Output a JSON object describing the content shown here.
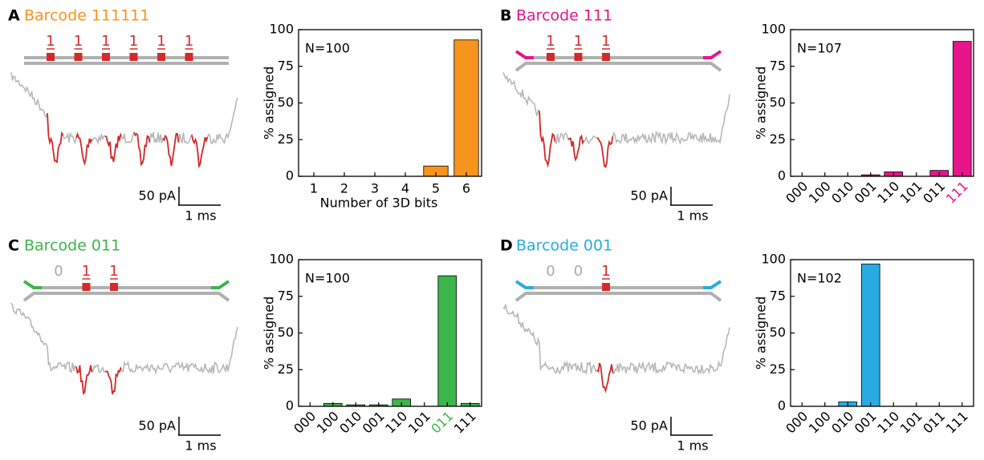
{
  "chart_data": [
    {
      "type": "bar",
      "panel_label": "A",
      "title": "Barcode 111111",
      "color": "#f7941d",
      "bits": [
        {
          "label": "1",
          "color": "#d42a2a"
        },
        {
          "label": "1",
          "color": "#d42a2a"
        },
        {
          "label": "1",
          "color": "#d42a2a"
        },
        {
          "label": "1",
          "color": "#d42a2a"
        },
        {
          "label": "1",
          "color": "#d42a2a"
        },
        {
          "label": "1",
          "color": "#d42a2a"
        }
      ],
      "bit_mark_color": "#d42a2a",
      "scale_labels": [
        "50 pA",
        "1 ms"
      ],
      "annotation": "N=100",
      "y_label": "% assigned",
      "x_label": "Number of 3D bits",
      "categories": [
        "1",
        "2",
        "3",
        "4",
        "5",
        "6"
      ],
      "values": [
        0,
        0,
        0,
        0,
        7,
        93
      ],
      "ylim": [
        0,
        100
      ],
      "yticks": [
        0,
        25,
        50,
        75,
        100
      ]
    },
    {
      "type": "bar",
      "panel_label": "B",
      "title": "Barcode 111",
      "color": "#e6168a",
      "bits": [
        {
          "label": "1",
          "color": "#d42a2a"
        },
        {
          "label": "1",
          "color": "#d42a2a"
        },
        {
          "label": "1",
          "color": "#d42a2a"
        }
      ],
      "bit_mark_color": "#d42a2a",
      "scale_labels": [
        "50 pA",
        "1 ms"
      ],
      "annotation": "N=107",
      "y_label": "% assigned",
      "categories": [
        "000",
        "100",
        "010",
        "001",
        "110",
        "101",
        "011",
        "111"
      ],
      "values": [
        0,
        0,
        0,
        1,
        3,
        0,
        4,
        92
      ],
      "category_label_colors": [
        "#000000",
        "#000000",
        "#000000",
        "#000000",
        "#000000",
        "#000000",
        "#000000",
        "#e6168a"
      ],
      "xtick_rotation": 45,
      "ylim": [
        0,
        100
      ],
      "yticks": [
        0,
        25,
        50,
        75,
        100
      ]
    },
    {
      "type": "bar",
      "panel_label": "C",
      "title": "Barcode 011",
      "color": "#3cb54a",
      "bits": [
        {
          "label": "0",
          "color": "#aaaaaa"
        },
        {
          "label": "1",
          "color": "#d42a2a"
        },
        {
          "label": "1",
          "color": "#d42a2a"
        }
      ],
      "bit_mark_color": "#d42a2a",
      "scale_labels": [
        "50 pA",
        "1 ms"
      ],
      "annotation": "N=100",
      "y_label": "% assigned",
      "categories": [
        "000",
        "100",
        "010",
        "001",
        "110",
        "101",
        "011",
        "111"
      ],
      "values": [
        0,
        2,
        1,
        1,
        5,
        0,
        89,
        2
      ],
      "category_label_colors": [
        "#000000",
        "#000000",
        "#000000",
        "#000000",
        "#000000",
        "#000000",
        "#3cb54a",
        "#000000"
      ],
      "xtick_rotation": 45,
      "ylim": [
        0,
        100
      ],
      "yticks": [
        0,
        25,
        50,
        75,
        100
      ]
    },
    {
      "type": "bar",
      "panel_label": "D",
      "title": "Barcode 001",
      "color": "#29abe2",
      "bits": [
        {
          "label": "0",
          "color": "#aaaaaa"
        },
        {
          "label": "0",
          "color": "#aaaaaa"
        },
        {
          "label": "1",
          "color": "#d42a2a"
        }
      ],
      "bit_mark_color": "#d42a2a",
      "scale_labels": [
        "50 pA",
        "1 ms"
      ],
      "annotation": "N=102",
      "y_label": "% assigned",
      "categories": [
        "000",
        "100",
        "010",
        "001",
        "110",
        "101",
        "011",
        "111"
      ],
      "values": [
        0,
        0,
        3,
        97,
        0,
        0,
        0,
        0
      ],
      "category_label_colors": [
        "#000000",
        "#000000",
        "#000000",
        "#000000",
        "#000000",
        "#000000",
        "#000000",
        "#000000"
      ],
      "xtick_rotation": 45,
      "ylim": [
        0,
        100
      ],
      "yticks": [
        0,
        25,
        50,
        75,
        100
      ]
    }
  ]
}
